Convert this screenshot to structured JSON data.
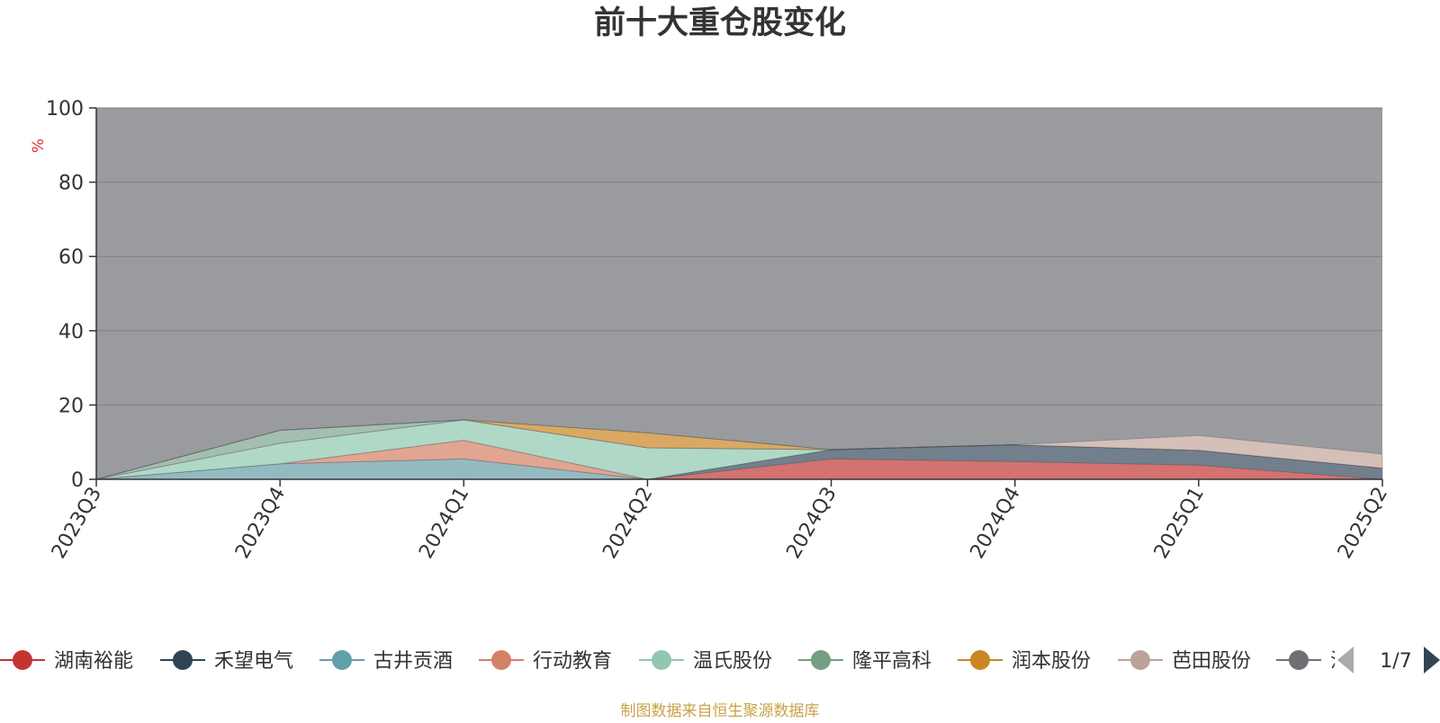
{
  "chart_data": {
    "type": "area",
    "stacked": true,
    "title": "前十大重仓股变化",
    "ylabel": "%",
    "ylim": [
      0,
      100
    ],
    "y_ticks": [
      0,
      20,
      40,
      60,
      80,
      100
    ],
    "grid": true,
    "categories": [
      "2023Q3",
      "2023Q4",
      "2024Q1",
      "2024Q2",
      "2024Q3",
      "2024Q4",
      "2025Q1",
      "2025Q2"
    ],
    "series": [
      {
        "name": "湖南裕能",
        "color": "#d7706e",
        "values": [
          0,
          0,
          0,
          0,
          5.5,
          4.8,
          3.8,
          0
        ]
      },
      {
        "name": "禾望电气",
        "color": "#6f7e8b",
        "values": [
          0,
          0,
          0,
          0,
          2.5,
          4.5,
          4.0,
          3.0
        ]
      },
      {
        "name": "古井贡酒",
        "color": "#93bcc3",
        "values": [
          0,
          4.2,
          5.5,
          0,
          0,
          0,
          0,
          0
        ]
      },
      {
        "name": "行动教育",
        "color": "#e5a590",
        "values": [
          0,
          0,
          5.0,
          0,
          0,
          0,
          0,
          0
        ]
      },
      {
        "name": "温氏股份",
        "color": "#b1dbc8",
        "values": [
          0,
          5.5,
          5.5,
          8.5,
          0,
          0,
          0,
          0
        ]
      },
      {
        "name": "隆平高科",
        "color": "#a4c0b0",
        "values": [
          0,
          3.5,
          0,
          0,
          0,
          0,
          0,
          0
        ]
      },
      {
        "name": "润本股份",
        "color": "#dcaa60",
        "values": [
          0,
          0,
          0,
          4.0,
          0,
          0,
          0,
          0
        ]
      },
      {
        "name": "芭田股份",
        "color": "#d8c1bb",
        "values": [
          0,
          0,
          0,
          0,
          0,
          0,
          4.0,
          3.8
        ]
      }
    ],
    "legend": {
      "position": "bottom",
      "page": "1/7",
      "items": [
        {
          "name": "湖南裕能",
          "color": "#c23531"
        },
        {
          "name": "禾望电气",
          "color": "#2f4554"
        },
        {
          "name": "古井贡酒",
          "color": "#61a0a8"
        },
        {
          "name": "行动教育",
          "color": "#d48265"
        },
        {
          "name": "温氏股份",
          "color": "#91c7ae"
        },
        {
          "name": "隆平高科",
          "color": "#749f83"
        },
        {
          "name": "润本股份",
          "color": "#ca8622"
        },
        {
          "name": "芭田股份",
          "color": "#bda29a"
        },
        {
          "name": "汉",
          "color": "#6e7074"
        }
      ]
    },
    "source_note": "制图数据来自恒生聚源数据库"
  }
}
